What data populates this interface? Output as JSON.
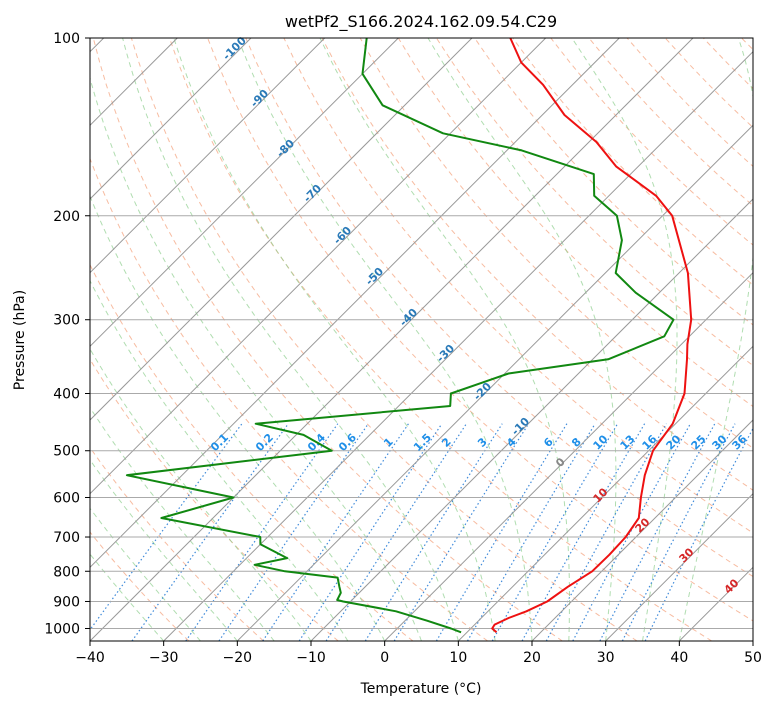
{
  "chart_data": {
    "type": "line",
    "subtype": "skew-T log-p diagram",
    "title": "wetPf2_S166.2024.162.09.54.C29",
    "xlabel": "Temperature (°C)",
    "ylabel": "Pressure (hPa)",
    "xlim": [
      -40,
      50
    ],
    "ylim": [
      1050,
      100
    ],
    "y_scale": "log",
    "x_ticks": [
      -40,
      -30,
      -20,
      -10,
      0,
      10,
      20,
      30,
      40,
      50
    ],
    "x_tick_labels": [
      "−40",
      "−30",
      "−20",
      "−10",
      "0",
      "10",
      "20",
      "30",
      "40",
      "50"
    ],
    "y_ticks": [
      1000,
      900,
      800,
      700,
      600,
      500,
      400,
      300,
      200,
      100
    ],
    "y_tick_labels": [
      "1000",
      "900",
      "800",
      "700",
      "600",
      "500",
      "400",
      "300",
      "200",
      "100"
    ],
    "grid": true,
    "series": [
      {
        "role": "temperature",
        "color": "#ee1111",
        "pressure": [
          1015,
          1000,
          985,
          960,
          935,
          900,
          850,
          800,
          750,
          700,
          650,
          600,
          550,
          500,
          450,
          400,
          350,
          330,
          300,
          250,
          200,
          185,
          165,
          150,
          135,
          120,
          110,
          100
        ],
        "temperature": [
          14,
          12.9,
          12.7,
          13.7,
          15.2,
          16.7,
          17.5,
          18.7,
          18.8,
          18.6,
          17.8,
          15.3,
          12.8,
          10.6,
          9.6,
          7.1,
          2.8,
          0.8,
          -2.0,
          -8.8,
          -18.7,
          -23.6,
          -33.0,
          -39.0,
          -47.0,
          -54.0,
          -60.0,
          -64.8
        ]
      },
      {
        "role": "dewpoint",
        "color": "#118811",
        "pressure": [
          1015,
          1000,
          970,
          935,
          900,
          895,
          870,
          850,
          820,
          800,
          780,
          760,
          720,
          700,
          650,
          600,
          550,
          500,
          470,
          450,
          420,
          400,
          370,
          350,
          320,
          300,
          270,
          250,
          220,
          200,
          185,
          170,
          155,
          145,
          130,
          115,
          100
        ],
        "dewpoint": [
          9.2,
          7.3,
          3.0,
          -2.5,
          -11.0,
          -12.0,
          -12.5,
          -13.5,
          -15.0,
          -23.0,
          -28.0,
          -24.5,
          -30.0,
          -31.0,
          -47.0,
          -40.0,
          -57.5,
          -33.0,
          -39.0,
          -47.0,
          -23.0,
          -24.6,
          -19.5,
          -7.9,
          -3.4,
          -4.4,
          -13.2,
          -18.6,
          -22.2,
          -26.2,
          -32.0,
          -35.0,
          -48.0,
          -61.0,
          -73.0,
          -80.0,
          -84.3
        ]
      }
    ],
    "dry_adiabat_labels": [
      "-100",
      "-90",
      "-80",
      "-70",
      "-60",
      "-50",
      "-40",
      "-30",
      "-20",
      "-10"
    ],
    "mixing_ratio_labels": [
      "0.1",
      "0.2",
      "0.4",
      "0.6",
      "1",
      "1.5",
      "2",
      "3",
      "4",
      "6",
      "8",
      "10",
      "13",
      "16",
      "20",
      "25",
      "30",
      "36"
    ],
    "moist_adiabat_labels": [
      "0",
      "10",
      "20",
      "30",
      "40"
    ]
  }
}
